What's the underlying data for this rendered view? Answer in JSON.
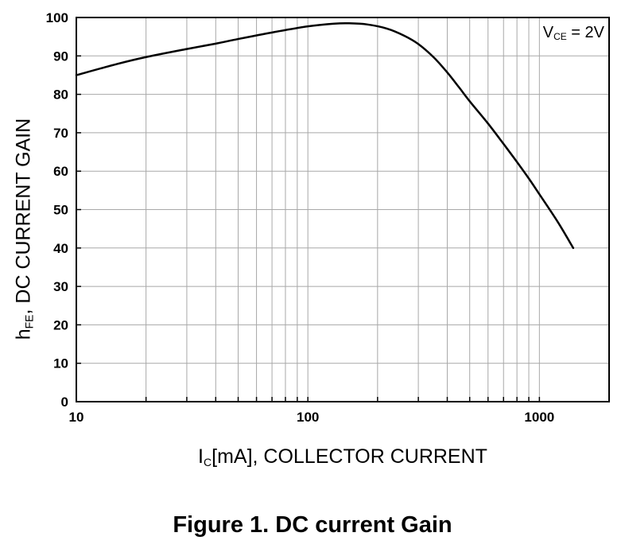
{
  "chart_data": {
    "type": "line",
    "title": "",
    "xscale": "log",
    "xlim": [
      10,
      2000
    ],
    "ylim": [
      0,
      100
    ],
    "xticks": [
      10,
      100,
      1000
    ],
    "xtick_labels": [
      "10",
      "100",
      "1000"
    ],
    "yticks": [
      0,
      10,
      20,
      30,
      40,
      50,
      60,
      70,
      80,
      90,
      100
    ],
    "ytick_labels": [
      "0",
      "10",
      "20",
      "30",
      "40",
      "50",
      "60",
      "70",
      "80",
      "90",
      "100"
    ],
    "grid": true,
    "xlabel": {
      "main": "I",
      "sub": "C",
      "rest": "[mA], COLLECTOR CURRENT"
    },
    "ylabel": {
      "main": "h",
      "sub": "FE",
      "rest": ", DC CURRENT GAIN"
    },
    "annotation": {
      "main": "V",
      "sub": "CE",
      "rest": " = 2V"
    },
    "series": [
      {
        "color": "#000000",
        "x": [
          10,
          15,
          20,
          30,
          40,
          50,
          70,
          100,
          130,
          150,
          180,
          220,
          260,
          300,
          350,
          400,
          450,
          500,
          600,
          700,
          800,
          900,
          1000,
          1200,
          1400
        ],
        "y": [
          85,
          87.9,
          89.7,
          91.8,
          93.2,
          94.4,
          96.1,
          97.7,
          98.4,
          98.5,
          98.2,
          97.1,
          95.3,
          93.1,
          89.6,
          85.7,
          81.8,
          78.2,
          72.4,
          67.1,
          62.4,
          58.1,
          54,
          46.8,
          40
        ]
      }
    ]
  },
  "figure_caption": "Figure 1. DC current Gain"
}
